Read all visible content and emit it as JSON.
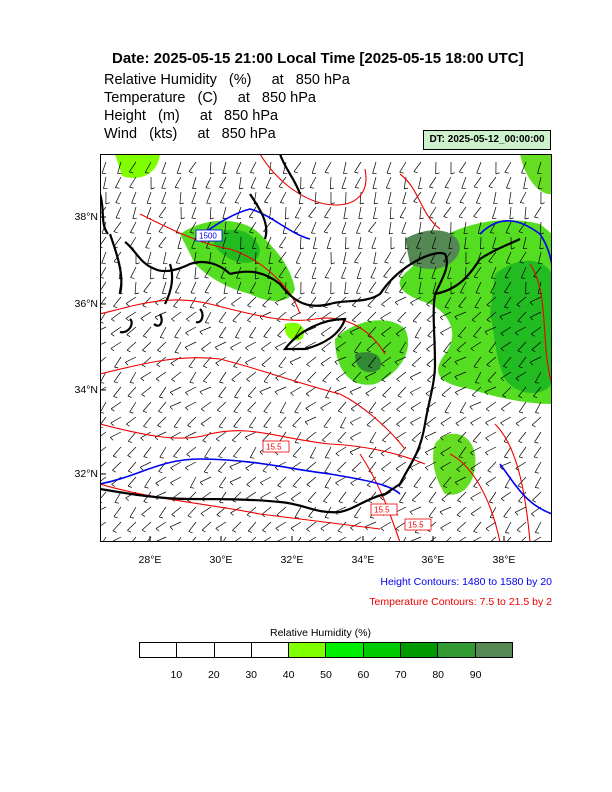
{
  "header": {
    "title": "Date: 2025-05-15  21:00 Local Time [2025-05-15  18:00 UTC]",
    "fields": [
      "Relative Humidity   (%)     at   850 hPa",
      "Temperature   (C)     at   850 hPa",
      "Height   (m)     at   850 hPa",
      "Wind   (kts)     at   850 hPa"
    ],
    "dt_label": "DT: 2025-05-12_00:00:00"
  },
  "map": {
    "lat_labels": [
      "38°N",
      "36°N",
      "34°N",
      "32°N"
    ],
    "lon_labels": [
      "28°E",
      "30°E",
      "32°E",
      "34°E",
      "36°E",
      "38°E"
    ],
    "contour_labels": {
      "height": "1500",
      "temperature_a": "15.5",
      "temperature_b": "15.5",
      "temperature_c": "15.5"
    },
    "colors": {
      "coastline": "#000000",
      "height_contour": "#0000ee",
      "temperature_contour": "#ee0000"
    }
  },
  "notes": {
    "height": "Height Contours: 1480 to 1580 by 20",
    "temperature": "Temperature Contours: 7.5 to 21.5 by 2"
  },
  "colorbar": {
    "title": "Relative Humidity  (%)",
    "colors": [
      "#ffffff",
      "#ffffff",
      "#ffffff",
      "#ffffff",
      "#80ff00",
      "#00ee00",
      "#00cc00",
      "#009900",
      "#339933",
      "#558855"
    ],
    "tick_labels": [
      "10",
      "20",
      "30",
      "40",
      "50",
      "60",
      "70",
      "80",
      "90"
    ]
  }
}
